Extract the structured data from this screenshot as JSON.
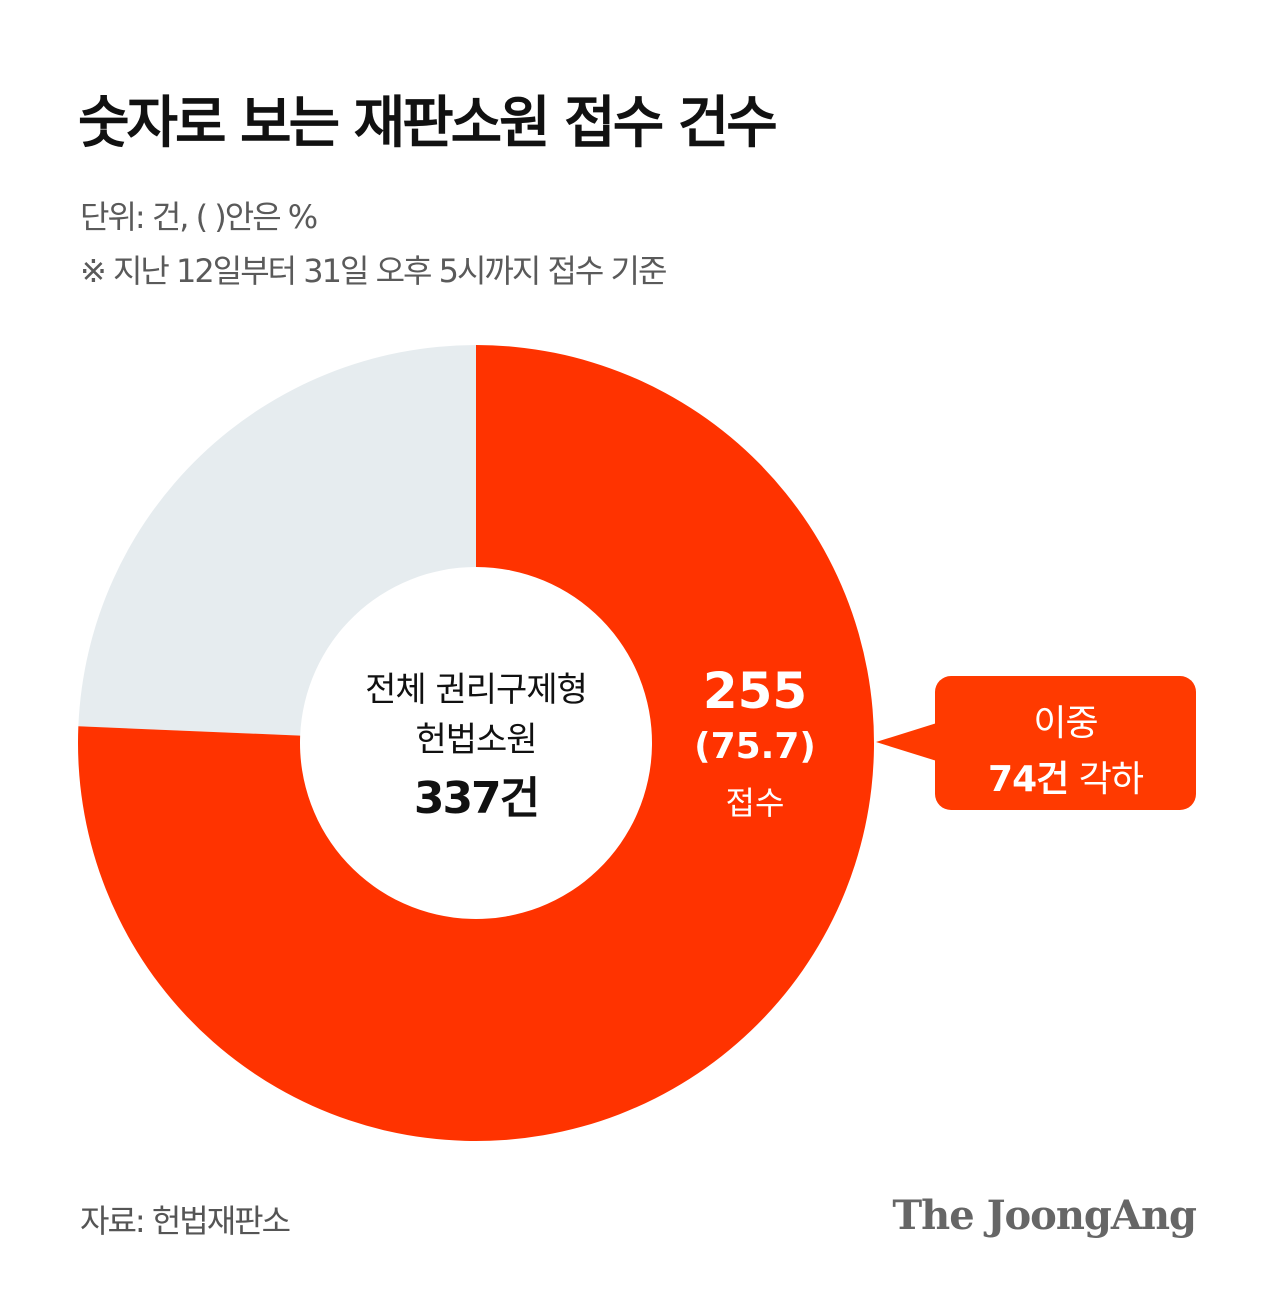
{
  "title": "숫자로 보는 재판소원 접수 건수",
  "unit_note": "단위: 건, ( )안은 %",
  "period_note": "※ 지난 12일부터 31일 오후 5시까지 접수 기준",
  "chart_data": {
    "type": "pie",
    "donut": true,
    "start": "top",
    "direction": "clockwise",
    "total": 337,
    "slices": [
      {
        "label": "접수",
        "value": 255,
        "percent": 75.7,
        "color": "#ff3300"
      },
      {
        "label": "",
        "value": 82,
        "percent": 24.3,
        "color": "#e6ecef"
      }
    ],
    "center_label": {
      "line1": "전체 권리구제형",
      "line2": "헌법소원",
      "value": "337건"
    },
    "slice_label": {
      "value": "255",
      "percent": "(75.7)",
      "text": "접수"
    },
    "annotation": {
      "line1": "이중",
      "value": "74건",
      "text": "각하"
    }
  },
  "source": "자료: 헌법재판소",
  "logo": "The JoongAng"
}
